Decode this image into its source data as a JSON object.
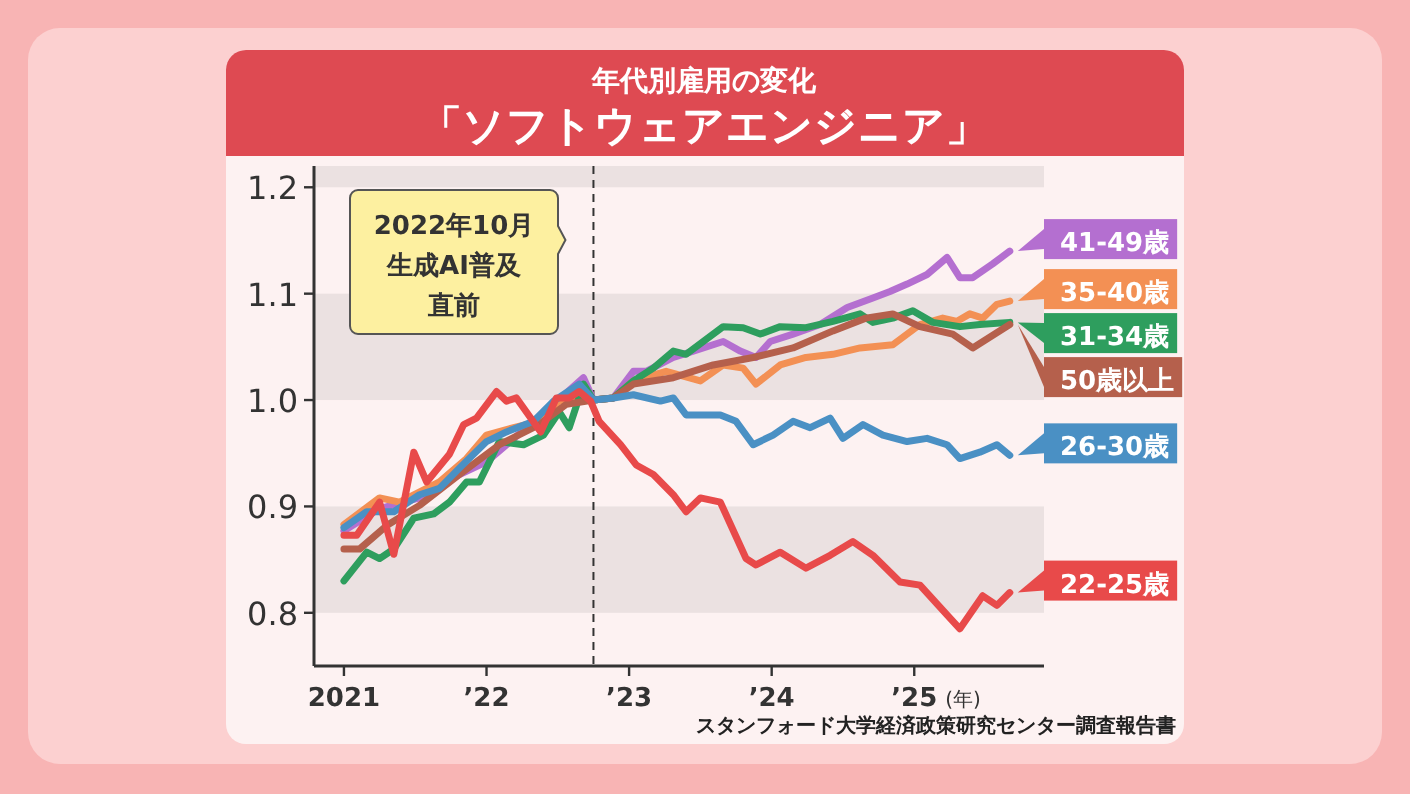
{
  "chart_data": {
    "type": "line",
    "title": "年代別雇用の変化",
    "subtitle": "「ソフトウェアエンジニア」",
    "xlabel": "(年)",
    "xlim": [
      2020.79,
      2025.91
    ],
    "ylim": [
      0.75,
      1.22
    ],
    "xticks": [
      2021,
      {
        "value": 2022,
        "label": "’22"
      },
      {
        "value": 2023,
        "label": "’23"
      },
      {
        "value": 2024,
        "label": "’24"
      },
      {
        "value": 2025,
        "label": "’25"
      }
    ],
    "yticks": [
      {
        "value": 0.8,
        "label": "0.8"
      },
      {
        "value": 0.9,
        "label": "0.9"
      },
      {
        "value": 1.0,
        "label": "1.0"
      },
      {
        "value": 1.1,
        "label": "1.1"
      },
      {
        "value": 1.2,
        "label": "1.2"
      }
    ],
    "grid": false,
    "legend": "right",
    "marker": "none",
    "line_style": "solid",
    "bands": [
      {
        "axis": "y",
        "from": 0.8,
        "to": 0.9,
        "color": "#ebe1e1"
      },
      {
        "axis": "y",
        "from": 1.0,
        "to": 1.1,
        "color": "#ebe1e1"
      },
      {
        "axis": "y",
        "from": 1.2,
        "to": 1.22,
        "color": "#ebe1e1"
      }
    ],
    "ref_lines": [
      {
        "axis": "x",
        "value": 2022.75,
        "line_style": "dashed",
        "color": "#333333"
      }
    ],
    "annotations": [
      "2022年10月",
      "生成AI普及",
      "直前",
      "スタンフォード大学経済政策研究センター調査報告書"
    ],
    "series": [
      {
        "name": "41-49歳",
        "color": "#b46fd0",
        "x": [
          2021.0,
          2021.25,
          2021.53,
          2021.81,
          2022.0,
          2022.14,
          2022.28,
          2022.47,
          2022.68,
          2022.75,
          2022.89,
          2023.03,
          2023.12,
          2023.31,
          2023.45,
          2023.66,
          2023.78,
          2023.89,
          2023.99,
          2024.15,
          2024.34,
          2024.53,
          2024.71,
          2024.83,
          2024.95,
          2025.09,
          2025.23,
          2025.32,
          2025.41,
          2025.55,
          2025.67
        ],
        "values": [
          0.877,
          0.898,
          0.908,
          0.93,
          0.942,
          0.958,
          0.974,
          0.996,
          1.021,
          1.0,
          1.002,
          1.027,
          1.027,
          1.04,
          1.046,
          1.055,
          1.046,
          1.04,
          1.055,
          1.062,
          1.071,
          1.087,
          1.096,
          1.102,
          1.109,
          1.118,
          1.134,
          1.115,
          1.115,
          1.128,
          1.14
        ]
      },
      {
        "name": "35-40歳",
        "color": "#f39054",
        "x": [
          2021.0,
          2021.25,
          2021.39,
          2021.67,
          2021.86,
          2022.0,
          2022.19,
          2022.37,
          2022.51,
          2022.65,
          2022.75,
          2022.89,
          2023.03,
          2023.26,
          2023.5,
          2023.66,
          2023.8,
          2023.89,
          2024.06,
          2024.24,
          2024.43,
          2024.62,
          2024.85,
          2025.04,
          2025.2,
          2025.3,
          2025.39,
          2025.48,
          2025.58,
          2025.67
        ],
        "values": [
          0.883,
          0.908,
          0.904,
          0.923,
          0.945,
          0.967,
          0.974,
          0.98,
          0.999,
          1.005,
          1.0,
          1.002,
          1.018,
          1.027,
          1.018,
          1.033,
          1.03,
          1.015,
          1.033,
          1.04,
          1.043,
          1.049,
          1.052,
          1.071,
          1.077,
          1.074,
          1.081,
          1.077,
          1.09,
          1.093
        ]
      },
      {
        "name": "31-34歳",
        "color": "#2e9e5e",
        "x": [
          2021.0,
          2021.16,
          2021.25,
          2021.35,
          2021.49,
          2021.63,
          2021.74,
          2021.86,
          2021.95,
          2022.09,
          2022.26,
          2022.4,
          2022.51,
          2022.58,
          2022.68,
          2022.75,
          2022.89,
          2023.03,
          2023.17,
          2023.31,
          2023.4,
          2023.66,
          2023.8,
          2023.92,
          2024.06,
          2024.24,
          2024.43,
          2024.62,
          2024.71,
          2024.85,
          2024.99,
          2025.13,
          2025.32,
          2025.46,
          2025.67
        ],
        "values": [
          0.83,
          0.857,
          0.851,
          0.86,
          0.889,
          0.893,
          0.904,
          0.923,
          0.923,
          0.961,
          0.958,
          0.967,
          0.989,
          0.974,
          1.015,
          1.0,
          1.002,
          1.018,
          1.03,
          1.046,
          1.043,
          1.069,
          1.068,
          1.062,
          1.069,
          1.068,
          1.074,
          1.081,
          1.073,
          1.077,
          1.084,
          1.073,
          1.069,
          1.071,
          1.073
        ]
      },
      {
        "name": "50歳以上",
        "color": "#b5604c",
        "x": [
          2021.0,
          2021.11,
          2021.3,
          2021.53,
          2021.81,
          2022.09,
          2022.37,
          2022.56,
          2022.75,
          2022.89,
          2023.03,
          2023.31,
          2023.59,
          2023.87,
          2024.15,
          2024.43,
          2024.66,
          2024.85,
          2025.04,
          2025.27,
          2025.41,
          2025.67
        ],
        "values": [
          0.86,
          0.86,
          0.882,
          0.901,
          0.93,
          0.958,
          0.977,
          0.996,
          1.0,
          1.002,
          1.015,
          1.021,
          1.033,
          1.04,
          1.049,
          1.065,
          1.077,
          1.081,
          1.069,
          1.062,
          1.049,
          1.071
        ]
      },
      {
        "name": "26-30歳",
        "color": "#4a90c4",
        "x": [
          2021.0,
          2021.16,
          2021.35,
          2021.53,
          2021.67,
          2021.81,
          2022.0,
          2022.14,
          2022.33,
          2022.47,
          2022.65,
          2022.75,
          2022.89,
          2023.03,
          2023.22,
          2023.31,
          2023.4,
          2023.64,
          2023.75,
          2023.87,
          2024.01,
          2024.15,
          2024.27,
          2024.41,
          2024.5,
          2024.64,
          2024.78,
          2024.95,
          2025.09,
          2025.23,
          2025.32,
          2025.46,
          2025.58,
          2025.67
        ],
        "values": [
          0.88,
          0.895,
          0.895,
          0.911,
          0.917,
          0.936,
          0.961,
          0.97,
          0.98,
          0.999,
          1.015,
          1.0,
          1.002,
          1.005,
          0.999,
          1.002,
          0.986,
          0.986,
          0.98,
          0.958,
          0.967,
          0.98,
          0.974,
          0.983,
          0.964,
          0.977,
          0.967,
          0.961,
          0.964,
          0.958,
          0.945,
          0.951,
          0.958,
          0.948
        ]
      },
      {
        "name": "22-25歳",
        "color": "#e84a4a",
        "x": [
          2021.0,
          2021.09,
          2021.25,
          2021.35,
          2021.49,
          2021.58,
          2021.74,
          2021.84,
          2021.93,
          2022.07,
          2022.14,
          2022.21,
          2022.38,
          2022.49,
          2022.58,
          2022.65,
          2022.73,
          2022.79,
          2022.94,
          2023.05,
          2023.17,
          2023.31,
          2023.4,
          2023.5,
          2023.64,
          2023.82,
          2023.89,
          2024.06,
          2024.24,
          2024.41,
          2024.57,
          2024.71,
          2024.9,
          2025.04,
          2025.23,
          2025.32,
          2025.48,
          2025.58,
          2025.67
        ],
        "values": [
          0.873,
          0.873,
          0.904,
          0.855,
          0.951,
          0.923,
          0.949,
          0.977,
          0.983,
          1.008,
          0.999,
          1.002,
          0.97,
          1.002,
          1.002,
          1.008,
          0.999,
          0.98,
          0.958,
          0.939,
          0.93,
          0.911,
          0.895,
          0.908,
          0.904,
          0.851,
          0.845,
          0.857,
          0.842,
          0.854,
          0.867,
          0.854,
          0.829,
          0.826,
          0.798,
          0.785,
          0.816,
          0.807,
          0.819
        ]
      }
    ]
  }
}
